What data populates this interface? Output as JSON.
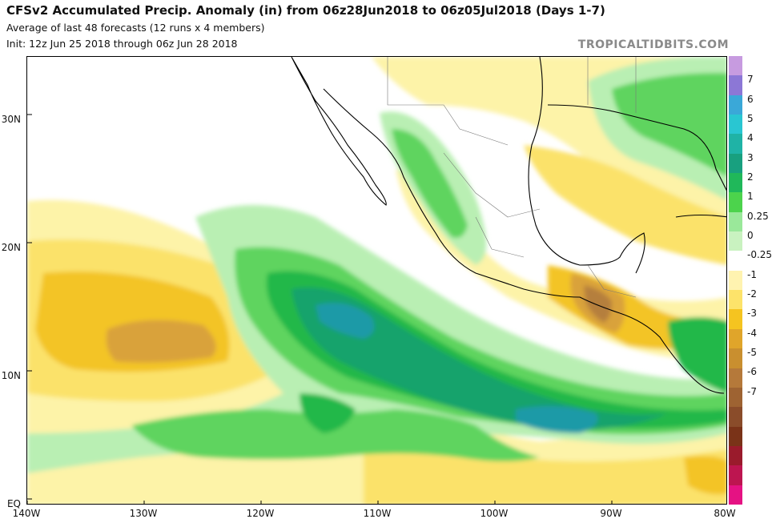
{
  "header": {
    "title": "CFSv2 Accumulated Precip. Anomaly (in) from 06z28Jun2018 to 06z05Jul2018 (Days 1-7)",
    "subtitle_1": "Average of last 48 forecasts (12 runs x 4 members)",
    "subtitle_2": "Init: 12z Jun 25 2018 through 06z Jun 28 2018",
    "brand": "TROPICALTIDBITS.COM"
  },
  "axes": {
    "lat_labels": [
      "30N",
      "20N",
      "10N",
      "EQ"
    ],
    "lon_labels": [
      "140W",
      "130W",
      "120W",
      "110W",
      "100W",
      "90W",
      "80W"
    ]
  },
  "colorbar": {
    "labels": [
      "7",
      "6",
      "5",
      "4",
      "3",
      "2",
      "1",
      "0.25",
      "0",
      "-0.25",
      "-1",
      "-2",
      "-3",
      "-4",
      "-5",
      "-6",
      "-7"
    ],
    "colors": [
      "#c79be0",
      "#8c77d6",
      "#3aa8d8",
      "#29c6d2",
      "#1fb3a6",
      "#18a07f",
      "#20b85a",
      "#4cd34c",
      "#9ae89a",
      "#c9f2c0",
      "#ffffff",
      "#fff3b0",
      "#fde36a",
      "#f5c420",
      "#e0a52a",
      "#c98f2f",
      "#b5793a",
      "#9e6332",
      "#8a4c2a",
      "#7a3318",
      "#9a1b2c",
      "#bd1550",
      "#e51283"
    ]
  },
  "map_colors": {
    "light_green": "#b9efb3",
    "mid_green": "#5fd45f",
    "green": "#22b84a",
    "dark_green": "#16a36c",
    "teal": "#1f9aa7",
    "light_yellow": "#fdf3a8",
    "yellow": "#fbe26a",
    "gold": "#f3c426",
    "orange": "#d9a23a",
    "brown": "#b57f3c"
  }
}
